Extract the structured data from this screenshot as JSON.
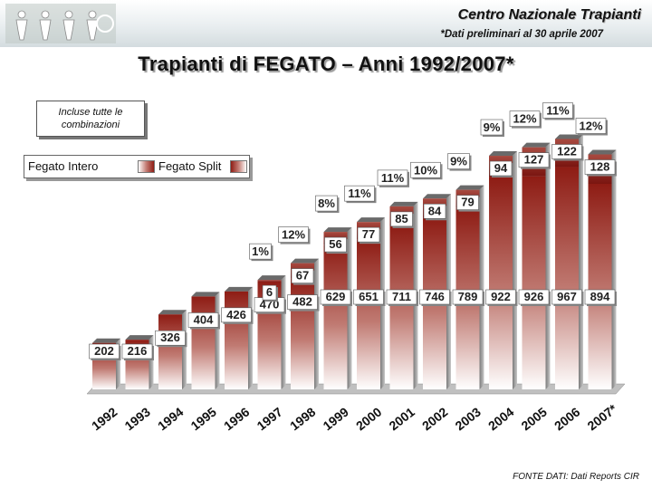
{
  "header": {
    "org_name": "Centro Nazionale Trapianti",
    "note": "*Dati preliminari al 30 aprile 2007"
  },
  "logo": {
    "icon": "people-silhouettes-logo"
  },
  "info_box": {
    "text": "Incluse tutte le combinazioni"
  },
  "legend": {
    "intero": "Fegato Intero",
    "split": "Fegato Split"
  },
  "footer": {
    "source": "FONTE DATI: Dati Reports CIR"
  },
  "colors": {
    "bar_main": "#8e1c14",
    "bar_light": "#ffffff",
    "grid_floor": "#c0c0c0"
  },
  "chart_data": {
    "type": "bar",
    "stacked": true,
    "title": "Trapianti di FEGATO – Anni 1992/2007*",
    "categories": [
      "1992",
      "1993",
      "1994",
      "1995",
      "1996",
      "1997",
      "1998",
      "1999",
      "2000",
      "2001",
      "2002",
      "2003",
      "2004",
      "2005",
      "2006",
      "2007*"
    ],
    "series": [
      {
        "name": "Fegato Intero",
        "values": [
          202,
          216,
          326,
          404,
          426,
          470,
          482,
          629,
          651,
          711,
          746,
          789,
          922,
          926,
          967,
          894
        ],
        "labels": [
          "202",
          "216",
          "326",
          "404",
          "426",
          "470",
          "482",
          "629",
          "651",
          "711",
          "746",
          "789",
          "922",
          "926",
          "967",
          "894"
        ]
      },
      {
        "name": "Fegato Split",
        "values": [
          0,
          0,
          0,
          0,
          0,
          6,
          67,
          56,
          77,
          85,
          84,
          79,
          94,
          127,
          122,
          128
        ],
        "labels": [
          "",
          "",
          "",
          "",
          "",
          "6",
          "67",
          "56",
          "77",
          "85",
          "84",
          "79",
          "94",
          "127",
          "122",
          "128"
        ]
      }
    ],
    "split_percent_labels": [
      "",
      "",
      "",
      "",
      "",
      "1%",
      "12%",
      "8%",
      "11%",
      "11%",
      "10%",
      "9%",
      "9%",
      "12%",
      "11%",
      "12%"
    ],
    "ylim": [
      0,
      1150
    ],
    "legend_position": "top-left",
    "grid": false
  }
}
